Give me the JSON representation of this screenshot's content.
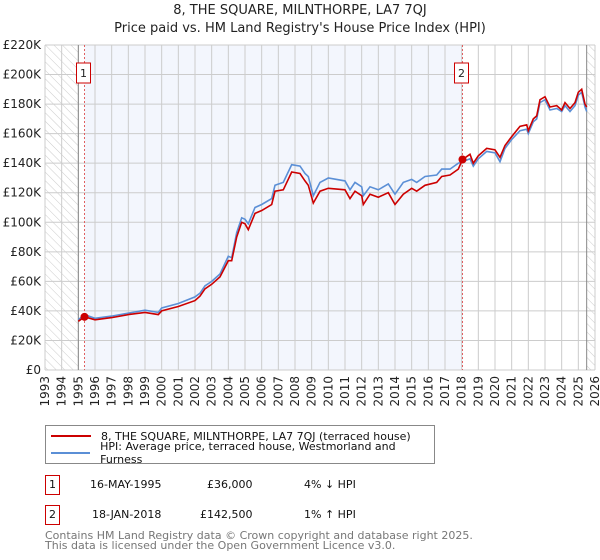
{
  "chart_data": {
    "type": "line",
    "title": "8, THE SQUARE, MILNTHORPE, LA7 7QJ",
    "subtitle": "Price paid vs. HM Land Registry's House Price Index (HPI)",
    "xlim": [
      1993,
      2026
    ],
    "ylim": [
      0,
      220000
    ],
    "grid": true,
    "x_ticks": [
      "1993",
      "1994",
      "1995",
      "1996",
      "1997",
      "1998",
      "1999",
      "2000",
      "2001",
      "2002",
      "2003",
      "2004",
      "2005",
      "2006",
      "2007",
      "2008",
      "2009",
      "2010",
      "2011",
      "2012",
      "2013",
      "2014",
      "2015",
      "2016",
      "2017",
      "2018",
      "2019",
      "2020",
      "2021",
      "2022",
      "2023",
      "2024",
      "2025",
      "2026"
    ],
    "y_ticks": [
      {
        "v": 0,
        "label": "£0"
      },
      {
        "v": 20000,
        "label": "£20K"
      },
      {
        "v": 40000,
        "label": "£40K"
      },
      {
        "v": 60000,
        "label": "£60K"
      },
      {
        "v": 80000,
        "label": "£80K"
      },
      {
        "v": 100000,
        "label": "£100K"
      },
      {
        "v": 120000,
        "label": "£120K"
      },
      {
        "v": 140000,
        "label": "£140K"
      },
      {
        "v": 160000,
        "label": "£160K"
      },
      {
        "v": 180000,
        "label": "£180K"
      },
      {
        "v": 200000,
        "label": "£200K"
      },
      {
        "v": 220000,
        "label": "£220K"
      }
    ],
    "shaded_range": [
      1995.37,
      2018.05
    ],
    "hatched_before": 1995.0,
    "hatched_after": 2025.5,
    "series": [
      {
        "name": "8, THE SQUARE, MILNTHORPE, LA7 7QJ (terraced house)",
        "color": "#cc0000",
        "points": [
          [
            1995.0,
            33000
          ],
          [
            1995.37,
            36000
          ],
          [
            1996,
            34000
          ],
          [
            1997,
            35500
          ],
          [
            1998,
            37500
          ],
          [
            1999,
            39000
          ],
          [
            1999.8,
            37500
          ],
          [
            2000,
            40000
          ],
          [
            2001,
            43000
          ],
          [
            2002,
            47000
          ],
          [
            2002.3,
            50000
          ],
          [
            2002.6,
            55000
          ],
          [
            2003,
            58000
          ],
          [
            2003.5,
            63000
          ],
          [
            2004,
            74000
          ],
          [
            2004.2,
            74000
          ],
          [
            2004.5,
            90000
          ],
          [
            2004.8,
            100000
          ],
          [
            2005,
            99000
          ],
          [
            2005.2,
            95000
          ],
          [
            2005.6,
            106000
          ],
          [
            2006,
            108000
          ],
          [
            2006.6,
            112000
          ],
          [
            2006.8,
            121000
          ],
          [
            2007.3,
            122000
          ],
          [
            2007.8,
            134000
          ],
          [
            2008.3,
            133000
          ],
          [
            2008.6,
            128000
          ],
          [
            2008.8,
            125000
          ],
          [
            2009.1,
            113000
          ],
          [
            2009.5,
            121000
          ],
          [
            2010,
            123000
          ],
          [
            2011,
            122000
          ],
          [
            2011.3,
            116000
          ],
          [
            2011.6,
            121000
          ],
          [
            2012,
            118000
          ],
          [
            2012.1,
            112000
          ],
          [
            2012.5,
            119000
          ],
          [
            2013,
            117000
          ],
          [
            2013.6,
            120000
          ],
          [
            2014,
            112000
          ],
          [
            2014.5,
            119000
          ],
          [
            2015,
            123000
          ],
          [
            2015.3,
            121000
          ],
          [
            2015.8,
            125000
          ],
          [
            2016.5,
            127000
          ],
          [
            2016.8,
            131000
          ],
          [
            2017.3,
            132000
          ],
          [
            2017.8,
            136000
          ],
          [
            2018.05,
            142500
          ],
          [
            2018.5,
            146000
          ],
          [
            2018.7,
            140000
          ],
          [
            2019,
            145000
          ],
          [
            2019.5,
            150000
          ],
          [
            2020,
            149000
          ],
          [
            2020.3,
            144000
          ],
          [
            2020.6,
            152000
          ],
          [
            2021,
            158000
          ],
          [
            2021.5,
            165000
          ],
          [
            2021.9,
            166000
          ],
          [
            2022,
            162000
          ],
          [
            2022.3,
            170000
          ],
          [
            2022.5,
            172000
          ],
          [
            2022.7,
            183000
          ],
          [
            2023,
            185000
          ],
          [
            2023.3,
            178000
          ],
          [
            2023.7,
            179000
          ],
          [
            2024,
            176000
          ],
          [
            2024.2,
            181000
          ],
          [
            2024.5,
            177000
          ],
          [
            2024.8,
            181000
          ],
          [
            2025.0,
            188000
          ],
          [
            2025.2,
            190000
          ],
          [
            2025.4,
            180000
          ],
          [
            2025.5,
            178000
          ]
        ]
      },
      {
        "name": "HPI: Average price, terraced house, Westmorland and Furness",
        "color": "#5b8fd6",
        "points": [
          [
            1995.0,
            34000
          ],
          [
            1995.37,
            37500
          ],
          [
            1996,
            35000
          ],
          [
            1997,
            36500
          ],
          [
            1998,
            38500
          ],
          [
            1999,
            40500
          ],
          [
            1999.8,
            39000
          ],
          [
            2000,
            42000
          ],
          [
            2001,
            45000
          ],
          [
            2002,
            49500
          ],
          [
            2002.3,
            52000
          ],
          [
            2002.6,
            57000
          ],
          [
            2003,
            60000
          ],
          [
            2003.5,
            65000
          ],
          [
            2004,
            77000
          ],
          [
            2004.2,
            76000
          ],
          [
            2004.5,
            93000
          ],
          [
            2004.8,
            103000
          ],
          [
            2005,
            102000
          ],
          [
            2005.2,
            99000
          ],
          [
            2005.6,
            110000
          ],
          [
            2006,
            112000
          ],
          [
            2006.6,
            116000
          ],
          [
            2006.8,
            125000
          ],
          [
            2007.3,
            127000
          ],
          [
            2007.8,
            139000
          ],
          [
            2008.3,
            138000
          ],
          [
            2008.6,
            133000
          ],
          [
            2008.8,
            131000
          ],
          [
            2009.1,
            118000
          ],
          [
            2009.5,
            127000
          ],
          [
            2010,
            130000
          ],
          [
            2011,
            128000
          ],
          [
            2011.3,
            122000
          ],
          [
            2011.6,
            127000
          ],
          [
            2012,
            124000
          ],
          [
            2012.1,
            118000
          ],
          [
            2012.5,
            124000
          ],
          [
            2013,
            122000
          ],
          [
            2013.6,
            126000
          ],
          [
            2014,
            119000
          ],
          [
            2014.5,
            127000
          ],
          [
            2015,
            129000
          ],
          [
            2015.3,
            127000
          ],
          [
            2015.8,
            131000
          ],
          [
            2016.5,
            132000
          ],
          [
            2016.8,
            136000
          ],
          [
            2017.3,
            136000
          ],
          [
            2017.8,
            140000
          ],
          [
            2018.05,
            141000
          ],
          [
            2018.5,
            143000
          ],
          [
            2018.7,
            138000
          ],
          [
            2019,
            143000
          ],
          [
            2019.5,
            148000
          ],
          [
            2020,
            147000
          ],
          [
            2020.3,
            141000
          ],
          [
            2020.6,
            150000
          ],
          [
            2021,
            156000
          ],
          [
            2021.5,
            162000
          ],
          [
            2021.9,
            163000
          ],
          [
            2022,
            160000
          ],
          [
            2022.3,
            168000
          ],
          [
            2022.5,
            170000
          ],
          [
            2022.7,
            181000
          ],
          [
            2023,
            183000
          ],
          [
            2023.3,
            176000
          ],
          [
            2023.7,
            177000
          ],
          [
            2024,
            175000
          ],
          [
            2024.2,
            179000
          ],
          [
            2024.5,
            175000
          ],
          [
            2024.8,
            179000
          ],
          [
            2025.0,
            186000
          ],
          [
            2025.2,
            188000
          ],
          [
            2025.4,
            178000
          ],
          [
            2025.5,
            175000
          ]
        ]
      }
    ],
    "annotations": [
      {
        "label": "1",
        "x": 1995.37,
        "value": 36000
      },
      {
        "label": "2",
        "x": 2018.05,
        "value": 142500
      }
    ]
  },
  "legend": [
    {
      "label": "8, THE SQUARE, MILNTHORPE, LA7 7QJ (terraced house)",
      "color": "#cc0000"
    },
    {
      "label": "HPI: Average price, terraced house, Westmorland and Furness",
      "color": "#5b8fd6"
    }
  ],
  "transactions": [
    {
      "num": "1",
      "date": "16-MAY-1995",
      "price": "£36,000",
      "hpi": "4% ↓ HPI"
    },
    {
      "num": "2",
      "date": "18-JAN-2018",
      "price": "£142,500",
      "hpi": "1% ↑ HPI"
    }
  ],
  "footer": {
    "line1": "Contains HM Land Registry data © Crown copyright and database right 2025.",
    "line2": "This data is licensed under the Open Government Licence v3.0."
  }
}
